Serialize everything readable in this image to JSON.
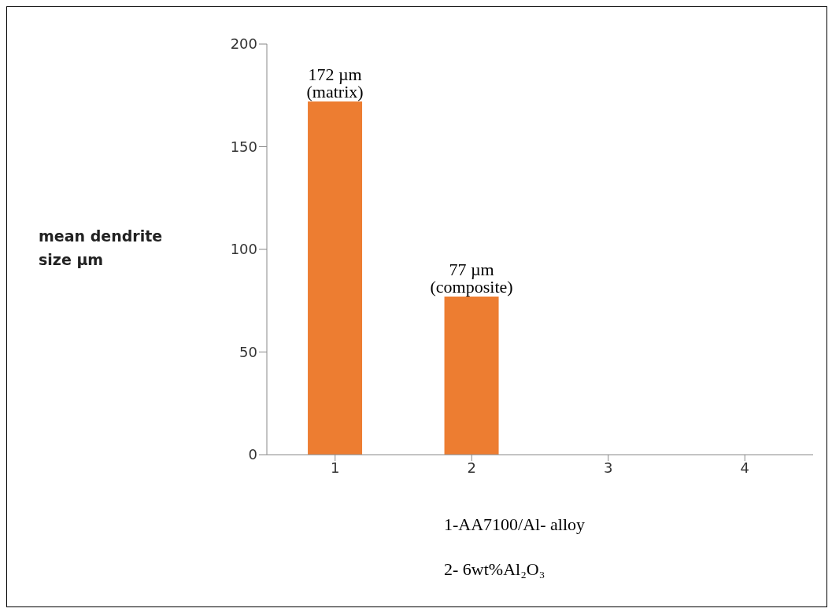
{
  "chart_data": {
    "type": "bar",
    "ylabel": "mean dendrite size µm",
    "categories": [
      "1",
      "2",
      "3",
      "4"
    ],
    "values": [
      172,
      77,
      null,
      null
    ],
    "color": "#ed7d31",
    "value_labels": [
      "172 µm (matrix)",
      "77 µm (composite)",
      null,
      null
    ],
    "ylim": [
      0,
      200
    ],
    "yticks": [
      0,
      50,
      100,
      150,
      200
    ],
    "annotations": [
      "1-AA7100/Al- alloy",
      "2- 6wt%Al₂O₃"
    ]
  }
}
